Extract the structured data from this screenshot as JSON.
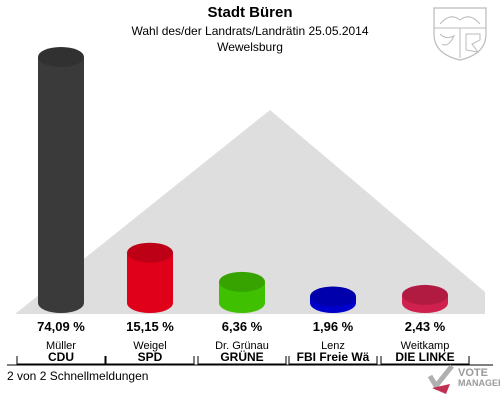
{
  "header": {
    "title": "Stadt Büren",
    "subtitle": "Wahl des/der Landrats/Landrätin 25.05.2014",
    "district": "Wewelsburg"
  },
  "footer": {
    "text": "2 von 2 Schnellmeldungen"
  },
  "logo": {
    "line1": "VOTE",
    "line2": "MANAGER",
    "icon": "ballot-check-icon"
  },
  "crest": {
    "icon": "nrw-coat-of-arms-icon"
  },
  "chart_data": {
    "type": "bar",
    "title": "Stadt Büren",
    "candidates": [
      "Müller",
      "Weigel",
      "Dr. Grünau",
      "Lenz",
      "Weitkamp"
    ],
    "categories": [
      "CDU",
      "SPD",
      "GRÜNE",
      "FBI Freie Wä",
      "DIE LINKE"
    ],
    "values": [
      74.09,
      15.15,
      6.36,
      1.96,
      2.43
    ],
    "value_labels": [
      "74,09 %",
      "15,15 %",
      "6,36 %",
      "1,96 %",
      "2,43 %"
    ],
    "colors": [
      "#3a3a3a",
      "#e0001a",
      "#3fc000",
      "#0000cc",
      "#d0204e"
    ],
    "ylim": [
      0,
      80
    ]
  }
}
